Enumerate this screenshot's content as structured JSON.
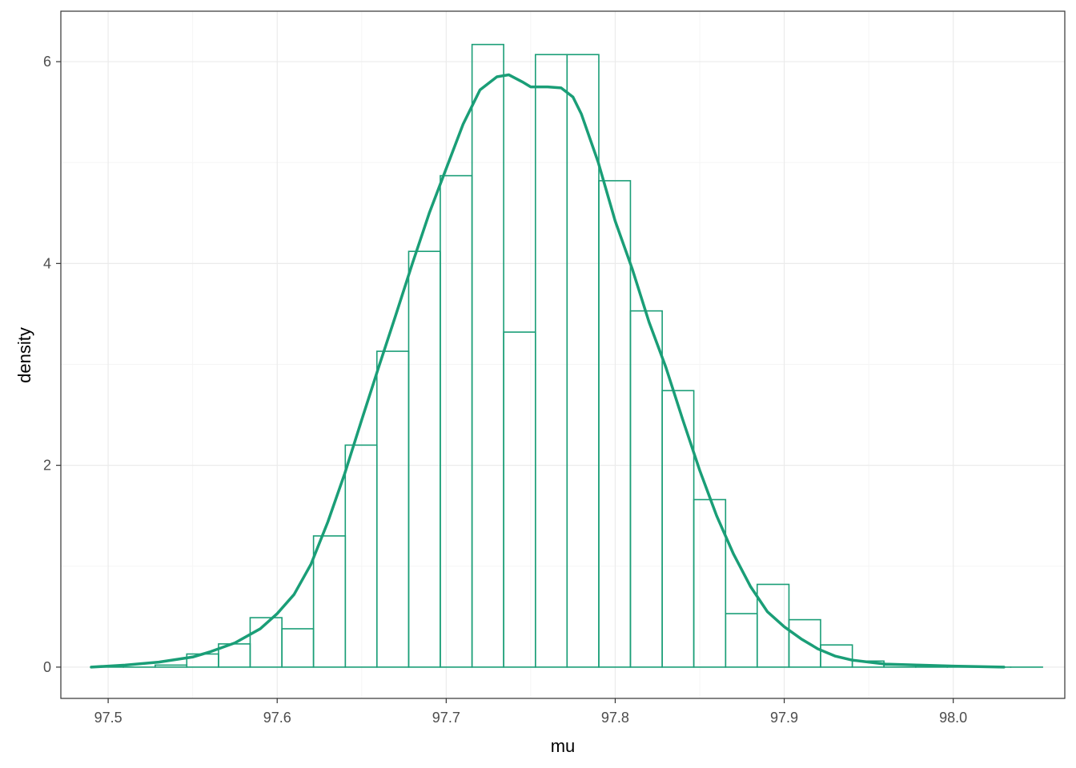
{
  "colors": {
    "accent": "#1a9e77",
    "grid_major": "#ebebeb",
    "grid_minor": "#f5f5f5",
    "panel_border": "#333333",
    "tick_text": "#4d4d4d"
  },
  "chart_data": {
    "type": "bar",
    "subtype": "histogram with density curve",
    "xlabel": "mu",
    "ylabel": "density",
    "xlim": [
      97.472,
      98.066
    ],
    "ylim": [
      -0.31,
      6.5
    ],
    "x_ticks": [
      97.5,
      97.6,
      97.7,
      97.8,
      97.9,
      98.0
    ],
    "x_tick_labels": [
      "97.5",
      "97.6",
      "97.7",
      "97.8",
      "97.9",
      "98.0"
    ],
    "y_ticks": [
      0,
      2,
      4,
      6
    ],
    "y_tick_labels": [
      "0",
      "2",
      "4",
      "6"
    ],
    "grid": true,
    "legend": "none",
    "bin_width": 0.01875,
    "bins": [
      {
        "x0": 97.4903,
        "x1": 97.509,
        "density": 0.0
      },
      {
        "x0": 97.509,
        "x1": 97.5278,
        "density": 0.0
      },
      {
        "x0": 97.5278,
        "x1": 97.5465,
        "density": 0.02
      },
      {
        "x0": 97.5465,
        "x1": 97.5653,
        "density": 0.13
      },
      {
        "x0": 97.5653,
        "x1": 97.584,
        "density": 0.23
      },
      {
        "x0": 97.584,
        "x1": 97.6028,
        "density": 0.49
      },
      {
        "x0": 97.6028,
        "x1": 97.6215,
        "density": 0.38
      },
      {
        "x0": 97.6215,
        "x1": 97.6403,
        "density": 1.3
      },
      {
        "x0": 97.6403,
        "x1": 97.659,
        "density": 2.2
      },
      {
        "x0": 97.659,
        "x1": 97.6778,
        "density": 3.13
      },
      {
        "x0": 97.6778,
        "x1": 97.6965,
        "density": 4.12
      },
      {
        "x0": 97.6965,
        "x1": 97.7153,
        "density": 4.87
      },
      {
        "x0": 97.7153,
        "x1": 97.734,
        "density": 6.17
      },
      {
        "x0": 97.734,
        "x1": 97.7528,
        "density": 3.32
      },
      {
        "x0": 97.7528,
        "x1": 97.7715,
        "density": 6.07
      },
      {
        "x0": 97.7715,
        "x1": 97.7903,
        "density": 6.07
      },
      {
        "x0": 97.7903,
        "x1": 97.809,
        "density": 4.82
      },
      {
        "x0": 97.809,
        "x1": 97.8278,
        "density": 3.53
      },
      {
        "x0": 97.8278,
        "x1": 97.8465,
        "density": 2.74
      },
      {
        "x0": 97.8465,
        "x1": 97.8653,
        "density": 1.66
      },
      {
        "x0": 97.8653,
        "x1": 97.884,
        "density": 0.53
      },
      {
        "x0": 97.884,
        "x1": 97.9028,
        "density": 0.82
      },
      {
        "x0": 97.9028,
        "x1": 97.9215,
        "density": 0.47
      },
      {
        "x0": 97.9215,
        "x1": 97.9403,
        "density": 0.22
      },
      {
        "x0": 97.9403,
        "x1": 97.959,
        "density": 0.06
      },
      {
        "x0": 97.959,
        "x1": 97.9778,
        "density": 0.02
      },
      {
        "x0": 97.9778,
        "x1": 97.9965,
        "density": 0.0
      },
      {
        "x0": 97.9965,
        "x1": 98.0153,
        "density": 0.0
      },
      {
        "x0": 98.0153,
        "x1": 98.034,
        "density": 0.0
      },
      {
        "x0": 98.034,
        "x1": 98.0528,
        "density": 0.0
      }
    ],
    "density_curve": {
      "x": [
        97.49,
        97.51,
        97.53,
        97.55,
        97.56,
        97.575,
        97.59,
        97.6,
        97.61,
        97.62,
        97.63,
        97.64,
        97.65,
        97.66,
        97.67,
        97.68,
        97.69,
        97.7,
        97.71,
        97.72,
        97.73,
        97.737,
        97.745,
        97.75,
        97.76,
        97.768,
        97.775,
        97.78,
        97.79,
        97.8,
        97.81,
        97.82,
        97.83,
        97.84,
        97.85,
        97.86,
        97.87,
        97.88,
        97.89,
        97.9,
        97.91,
        97.92,
        97.93,
        97.94,
        97.95,
        97.96,
        97.98,
        98.0,
        98.03
      ],
      "y": [
        0.0,
        0.02,
        0.05,
        0.1,
        0.15,
        0.24,
        0.38,
        0.53,
        0.72,
        1.02,
        1.44,
        1.92,
        2.45,
        2.97,
        3.48,
        4.0,
        4.5,
        4.94,
        5.38,
        5.72,
        5.85,
        5.87,
        5.8,
        5.75,
        5.75,
        5.74,
        5.65,
        5.48,
        5.0,
        4.42,
        3.95,
        3.42,
        2.97,
        2.45,
        1.95,
        1.5,
        1.12,
        0.8,
        0.55,
        0.4,
        0.28,
        0.18,
        0.11,
        0.07,
        0.05,
        0.03,
        0.02,
        0.01,
        0.0
      ]
    }
  }
}
